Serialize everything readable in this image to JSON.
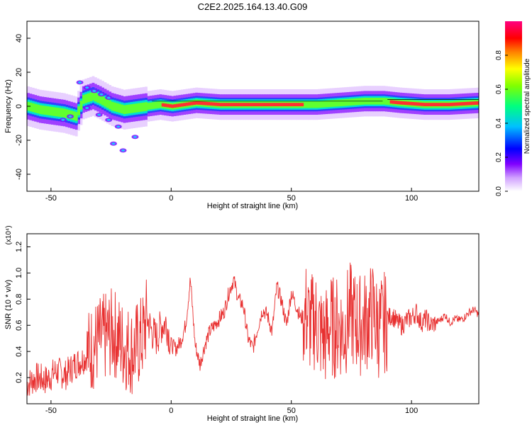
{
  "figure": {
    "title": "C2E2.2025.164.13.40.G09",
    "colorbar_label": "Normalized spectral amplitude",
    "colorbar_ticks": [
      "0.0",
      "0.2",
      "0.4",
      "0.6",
      "0.8"
    ]
  },
  "chart_data": [
    {
      "type": "heatmap",
      "title": "C2E2.2025.164.13.40.G09",
      "xlabel": "Height of straight line (km)",
      "ylabel": "Frequency (Hz)",
      "xlim": [
        -60,
        128
      ],
      "ylim": [
        -50,
        50
      ],
      "xticks": [
        -50,
        0,
        50,
        100
      ],
      "yticks": [
        -40,
        -20,
        0,
        20,
        40
      ],
      "colorbar": {
        "label": "Normalized spectral amplitude",
        "range": [
          0,
          1
        ],
        "ticks": [
          0.0,
          0.2,
          0.4,
          0.6,
          0.8
        ],
        "colors": [
          "#ffffff",
          "#a000ff",
          "#0000ff",
          "#00ffff",
          "#00ff00",
          "#ffff00",
          "#ff0000",
          "#ff0080"
        ]
      },
      "ridge": [
        {
          "x": -60,
          "f": 0
        },
        {
          "x": -55,
          "f": -2
        },
        {
          "x": -50,
          "f": -3
        },
        {
          "x": -45,
          "f": -4
        },
        {
          "x": -40,
          "f": -6
        },
        {
          "x": -37,
          "f": 4
        },
        {
          "x": -33,
          "f": 6
        },
        {
          "x": -30,
          "f": 4
        },
        {
          "x": -25,
          "f": 0
        },
        {
          "x": -20,
          "f": -2
        },
        {
          "x": -15,
          "f": -1
        },
        {
          "x": -10,
          "f": 0
        },
        {
          "x": -5,
          "f": 1
        },
        {
          "x": 0,
          "f": 0
        },
        {
          "x": 5,
          "f": 1
        },
        {
          "x": 10,
          "f": 2
        },
        {
          "x": 20,
          "f": 1
        },
        {
          "x": 30,
          "f": 1
        },
        {
          "x": 40,
          "f": 1
        },
        {
          "x": 50,
          "f": 1
        },
        {
          "x": 60,
          "f": 1
        },
        {
          "x": 70,
          "f": 2
        },
        {
          "x": 80,
          "f": 3
        },
        {
          "x": 88,
          "f": 3
        },
        {
          "x": 95,
          "f": 2
        },
        {
          "x": 105,
          "f": 1
        },
        {
          "x": 115,
          "f": 1
        },
        {
          "x": 128,
          "f": 2
        }
      ]
    },
    {
      "type": "line",
      "xlabel": "Height of straight line (km)",
      "ylabel": "SNR (10 * v/v)",
      "y_multiplier": "(x10⁴)",
      "xlim": [
        -60,
        128
      ],
      "ylim": [
        0,
        1.3
      ],
      "xticks": [
        -50,
        0,
        50,
        100
      ],
      "yticks": [
        0.2,
        0.4,
        0.6,
        0.8,
        1.0,
        1.2
      ],
      "color": "#e83030",
      "series": [
        {
          "x": [
            -60,
            -56,
            -52,
            -48,
            -44,
            -40,
            -36,
            -32,
            -28,
            -24,
            -20,
            -16,
            -12,
            -10,
            -8,
            -6,
            -4,
            -2,
            0,
            2,
            4,
            6,
            8,
            10,
            12,
            14,
            16,
            18,
            20,
            22,
            24,
            26,
            28,
            30,
            32,
            34,
            36,
            38,
            40,
            42,
            44,
            46,
            48,
            50,
            52,
            54,
            56,
            58,
            60,
            62,
            64,
            66,
            68,
            70,
            72,
            74,
            76,
            78,
            80,
            82,
            84,
            86,
            88,
            90,
            92,
            94,
            96,
            98,
            100,
            102,
            104,
            106,
            108,
            110,
            112,
            114,
            116,
            118,
            120,
            122,
            124,
            126,
            128
          ],
          "y": [
            0.15,
            0.2,
            0.18,
            0.25,
            0.22,
            0.3,
            0.35,
            0.45,
            0.5,
            0.55,
            0.45,
            0.4,
            0.5,
            0.65,
            0.55,
            0.5,
            0.6,
            0.62,
            0.45,
            0.42,
            0.48,
            0.6,
            0.95,
            0.45,
            0.3,
            0.45,
            0.55,
            0.6,
            0.65,
            0.7,
            0.85,
            0.95,
            0.8,
            0.75,
            0.5,
            0.42,
            0.58,
            0.72,
            0.68,
            0.55,
            0.9,
            0.78,
            0.6,
            0.85,
            0.75,
            0.65,
            0.7,
            0.6,
            0.65,
            0.55,
            0.5,
            0.6,
            0.58,
            0.6,
            0.55,
            0.7,
            0.65,
            0.6,
            0.62,
            0.65,
            0.7,
            0.58,
            0.6,
            0.65,
            0.68,
            0.62,
            0.6,
            0.64,
            0.66,
            0.7,
            0.62,
            0.65,
            0.6,
            0.62,
            0.64,
            0.68,
            0.62,
            0.65,
            0.64,
            0.66,
            0.7,
            0.72,
            0.68
          ]
        }
      ]
    }
  ]
}
